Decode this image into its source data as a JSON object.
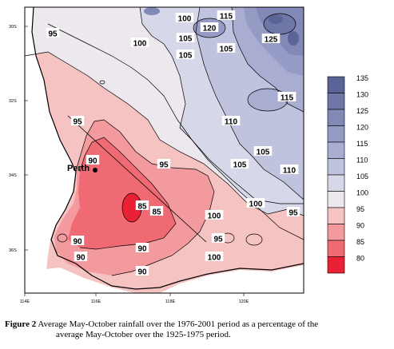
{
  "figure": {
    "label": "Figure 2",
    "caption_line1": "Average May-October rainfall over the 1976-2001 period as a percentage of the",
    "caption_line2": "average May-October over the 1925-1975 period."
  },
  "axes": {
    "x_ticks": [
      "114E",
      "116E",
      "118E",
      "120E"
    ],
    "y_ticks": [
      "30S",
      "32S",
      "34S",
      "36S"
    ]
  },
  "place": {
    "name": "Perth"
  },
  "contour_labels": [
    "100",
    "115",
    "120",
    "125",
    "95",
    "100",
    "105",
    "105",
    "105",
    "115",
    "95",
    "110",
    "105",
    "90",
    "105",
    "110",
    "85",
    "95",
    "85",
    "100",
    "100",
    "95",
    "95",
    "90",
    "90",
    "90",
    "100",
    "90"
  ],
  "legend": {
    "levels": [
      "135",
      "130",
      "125",
      "120",
      "115",
      "110",
      "105",
      "100",
      "95",
      "90",
      "85",
      "80"
    ],
    "colors": [
      "#5b6497",
      "#6f77a6",
      "#8289b6",
      "#959bc4",
      "#a9add1",
      "#c0c3dd",
      "#d6d7e8",
      "#ece8ee",
      "#f6c3c3",
      "#f39a9e",
      "#ef6a73",
      "#ea2035"
    ]
  },
  "colors": {
    "frame": "#000000",
    "background": "#ffffff"
  }
}
